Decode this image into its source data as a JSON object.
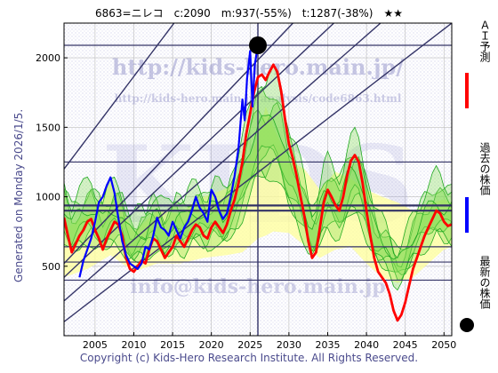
{
  "header": {
    "title": "6863=ニレコ　c:2090　m:937(-55%)　t:1287(-38%)　★★"
  },
  "side_note": "Generated on Monday 2026/1/5.",
  "footer": "Copyright (c) Kids-Hero Research Institute. All Rights Reserved.",
  "watermarks": {
    "url_main": "http://kids-hero.main.jp/",
    "url_sub": "http://kids-hero.main.jp/analysis/code6863.html",
    "email": "info@kids-hero.main.jp",
    "logo": "KIDS"
  },
  "legend": [
    {
      "label": "ＡＩ予測",
      "color": "#ff0000",
      "marker": "line"
    },
    {
      "label": "過去の株価",
      "color": "#0000ff",
      "marker": "line"
    },
    {
      "label": "最新の株価",
      "color": "#000000",
      "marker": "dot"
    }
  ],
  "colors": {
    "prediction": "#ff0000",
    "history": "#0000ff",
    "band_fill": "#ffff99",
    "band_green_fill": "#88dd55",
    "band_green_line": "#22aa22",
    "channel_line": "#333366",
    "grid": "#bbbbbb"
  },
  "chart_data": {
    "type": "line",
    "title": "6863=ニレコ　c:2090　m:937(-55%)　t:1287(-38%)　★★",
    "xlabel": "",
    "ylabel": "",
    "xlim": [
      2001,
      2051
    ],
    "ylim": [
      0,
      2250
    ],
    "x_ticks": [
      2005,
      2010,
      2015,
      2020,
      2025,
      2030,
      2035,
      2040,
      2045,
      2050
    ],
    "y_ticks": [
      500,
      1000,
      1500,
      2000
    ],
    "grid": true,
    "legend_position": "right",
    "latest_point": {
      "x": 2026.0,
      "y": 2090
    },
    "horizontal_levels": [
      2090,
      1250,
      937,
      900,
      640,
      530,
      400
    ],
    "vertical_marker": 2026.0,
    "channels": [
      {
        "x1": 2001,
        "y1": 420,
        "x2": 2051,
        "y2": 3050
      },
      {
        "x1": 2001,
        "y1": 520,
        "x2": 2051,
        "y2": 3450
      },
      {
        "x1": 2001,
        "y1": 250,
        "x2": 2051,
        "y2": 2700
      },
      {
        "x1": 2001,
        "y1": 100,
        "x2": 2051,
        "y2": 2250
      },
      {
        "x1": 2001,
        "y1": 1200,
        "x2": 2051,
        "y2": 4900
      }
    ],
    "series": [
      {
        "name": "過去の株価",
        "x": [
          2003.0,
          2003.5,
          2004.0,
          2004.5,
          2005.0,
          2005.5,
          2006.0,
          2006.5,
          2007.0,
          2007.5,
          2008.0,
          2008.5,
          2009.0,
          2009.5,
          2010.0,
          2010.5,
          2011.0,
          2011.5,
          2012.0,
          2012.5,
          2013.0,
          2013.5,
          2014.0,
          2014.5,
          2015.0,
          2015.5,
          2016.0,
          2016.5,
          2017.0,
          2017.5,
          2018.0,
          2018.5,
          2019.0,
          2019.5,
          2020.0,
          2020.5,
          2021.0,
          2021.5,
          2022.0,
          2022.5,
          2023.0,
          2023.5,
          2024.0,
          2024.3,
          2024.6,
          2025.0,
          2025.3,
          2025.6,
          2026.0
        ],
        "values": [
          420,
          540,
          620,
          700,
          820,
          960,
          1000,
          1080,
          1140,
          1030,
          850,
          680,
          580,
          520,
          500,
          480,
          520,
          640,
          620,
          720,
          850,
          780,
          760,
          720,
          820,
          760,
          700,
          780,
          820,
          900,
          1000,
          920,
          880,
          820,
          1050,
          1000,
          900,
          840,
          880,
          1000,
          1150,
          1350,
          1700,
          1550,
          1850,
          2050,
          1650,
          1950,
          2090
        ]
      },
      {
        "name": "ＡＩ予測",
        "x": [
          2001.0,
          2001.5,
          2002.0,
          2002.5,
          2003.0,
          2003.5,
          2004.0,
          2004.5,
          2005.0,
          2005.5,
          2006.0,
          2006.5,
          2007.0,
          2007.5,
          2008.0,
          2008.5,
          2009.0,
          2009.5,
          2010.0,
          2010.5,
          2011.0,
          2011.5,
          2012.0,
          2012.5,
          2013.0,
          2013.5,
          2014.0,
          2014.5,
          2015.0,
          2015.5,
          2016.0,
          2016.5,
          2017.0,
          2017.5,
          2018.0,
          2018.5,
          2019.0,
          2019.5,
          2020.0,
          2020.5,
          2021.0,
          2021.5,
          2022.0,
          2022.5,
          2023.0,
          2023.5,
          2024.0,
          2024.5,
          2025.0,
          2025.5,
          2026.0,
          2026.5,
          2027.0,
          2027.5,
          2028.0,
          2028.5,
          2029.0,
          2029.5,
          2030.0,
          2030.5,
          2031.0,
          2031.5,
          2032.0,
          2032.5,
          2033.0,
          2033.5,
          2034.0,
          2034.5,
          2035.0,
          2035.5,
          2036.0,
          2036.5,
          2037.0,
          2037.5,
          2038.0,
          2038.5,
          2039.0,
          2039.5,
          2040.0,
          2040.5,
          2041.0,
          2041.5,
          2042.0,
          2042.5,
          2043.0,
          2043.5,
          2044.0,
          2044.5,
          2045.0,
          2045.5,
          2046.0,
          2046.5,
          2047.0,
          2047.5,
          2048.0,
          2048.5,
          2049.0,
          2049.5,
          2050.0,
          2050.5,
          2051.0
        ],
        "values": [
          850,
          720,
          600,
          660,
          720,
          760,
          820,
          840,
          760,
          700,
          620,
          700,
          760,
          820,
          800,
          720,
          560,
          480,
          460,
          500,
          540,
          520,
          620,
          700,
          680,
          620,
          560,
          600,
          640,
          720,
          680,
          640,
          700,
          760,
          800,
          780,
          720,
          700,
          780,
          820,
          780,
          740,
          800,
          900,
          980,
          1100,
          1250,
          1450,
          1600,
          1750,
          1860,
          1880,
          1840,
          1900,
          1950,
          1900,
          1760,
          1560,
          1380,
          1280,
          1150,
          1000,
          860,
          680,
          560,
          600,
          780,
          960,
          1050,
          1000,
          940,
          900,
          1000,
          1150,
          1260,
          1300,
          1250,
          1100,
          900,
          720,
          560,
          460,
          420,
          380,
          300,
          180,
          110,
          150,
          240,
          360,
          480,
          560,
          640,
          720,
          780,
          840,
          900,
          880,
          820,
          790,
          800
        ]
      },
      {
        "name": "band_upper",
        "x": [
          2001,
          2004,
          2007,
          2010,
          2013,
          2016,
          2019,
          2022,
          2024,
          2026,
          2027,
          2028,
          2030,
          2032,
          2034,
          2036,
          2038,
          2040,
          2042,
          2044,
          2046,
          2048,
          2050,
          2051
        ],
        "values": [
          760,
          880,
          1100,
          750,
          900,
          880,
          1000,
          1060,
          1150,
          1420,
          1650,
          1500,
          1260,
          1200,
          1050,
          1180,
          1130,
          1050,
          1000,
          960,
          900,
          950,
          980,
          960
        ]
      },
      {
        "name": "band_lower",
        "x": [
          2001,
          2004,
          2007,
          2010,
          2013,
          2016,
          2019,
          2022,
          2024,
          2026,
          2027,
          2028,
          2030,
          2032,
          2034,
          2036,
          2038,
          2040,
          2042,
          2044,
          2046,
          2048,
          2050,
          2051
        ],
        "values": [
          420,
          480,
          580,
          460,
          520,
          520,
          560,
          580,
          600,
          700,
          720,
          750,
          740,
          650,
          560,
          620,
          640,
          520,
          420,
          380,
          420,
          520,
          620,
          640
        ]
      }
    ]
  }
}
